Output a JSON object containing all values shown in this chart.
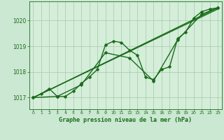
{
  "title": "Graphe pression niveau de la mer (hPa)",
  "background_color": "#cbe8d2",
  "plot_bg_color": "#d4eeda",
  "grid_color": "#a8c8aa",
  "line_color": "#1a6b1a",
  "xlim": [
    -0.5,
    23.5
  ],
  "ylim": [
    1016.55,
    1020.75
  ],
  "yticks": [
    1017,
    1018,
    1019,
    1020
  ],
  "xticks": [
    0,
    1,
    2,
    3,
    4,
    5,
    6,
    7,
    8,
    9,
    10,
    11,
    12,
    13,
    14,
    15,
    16,
    17,
    18,
    19,
    20,
    21,
    22,
    23
  ],
  "series": [
    {
      "x": [
        0,
        1,
        2,
        3,
        4,
        5,
        6,
        7,
        8,
        9,
        10,
        11,
        12,
        13,
        14,
        15,
        16,
        17,
        18,
        19,
        20,
        21,
        22,
        23
      ],
      "y": [
        1017.0,
        1017.15,
        1017.35,
        1017.05,
        1017.05,
        1017.25,
        1017.55,
        1017.8,
        1018.1,
        1019.05,
        1019.2,
        1019.15,
        1018.85,
        1018.65,
        1017.8,
        1017.7,
        1018.1,
        1018.2,
        1019.3,
        1019.55,
        1020.1,
        1020.35,
        1020.45,
        1020.5
      ],
      "marker": "D",
      "markersize": 2.5,
      "linewidth": 1.0
    },
    {
      "x": [
        0,
        3,
        6,
        9,
        12,
        15,
        18,
        21,
        23
      ],
      "y": [
        1017.0,
        1017.05,
        1017.5,
        1018.75,
        1018.55,
        1017.65,
        1019.25,
        1020.25,
        1020.5
      ],
      "marker": "D",
      "markersize": 2.5,
      "linewidth": 1.0
    },
    {
      "x": [
        0,
        23
      ],
      "y": [
        1017.0,
        1020.5
      ],
      "marker": null,
      "markersize": 0,
      "linewidth": 1.0
    },
    {
      "x": [
        0,
        23
      ],
      "y": [
        1017.0,
        1020.45
      ],
      "marker": null,
      "markersize": 0,
      "linewidth": 1.0
    }
  ]
}
